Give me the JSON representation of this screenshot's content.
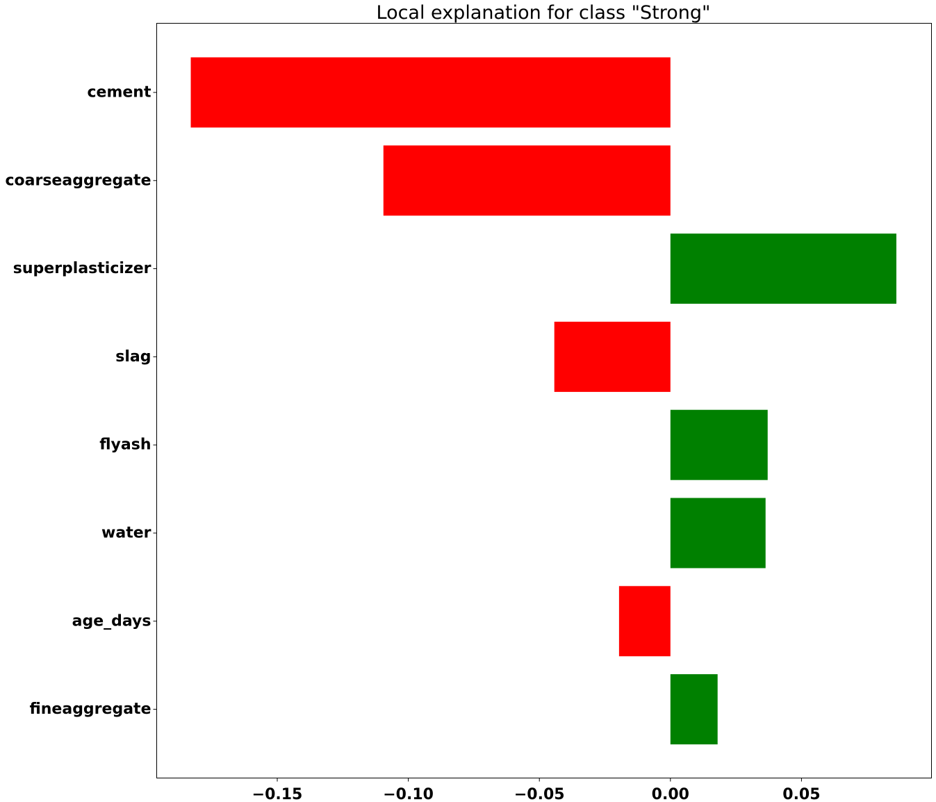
{
  "chart_data": {
    "type": "bar",
    "orientation": "horizontal",
    "title": "Local explanation for class \"Strong\"",
    "xlabel": "",
    "ylabel": "",
    "categories": [
      "cement",
      "coarseaggregate",
      "superplasticizer",
      "slag",
      "flyash",
      "water",
      "age_days",
      "fineaggregate"
    ],
    "values": [
      -0.183,
      -0.1095,
      0.0862,
      -0.0443,
      0.0371,
      0.0363,
      -0.0196,
      0.018
    ],
    "xlim": [
      -0.196,
      0.0996
    ],
    "xticks": [
      -0.15,
      -0.1,
      -0.05,
      0.0,
      0.05
    ],
    "xtick_labels": [
      "−0.15",
      "−0.10",
      "−0.05",
      "0.00",
      "0.05"
    ],
    "colors": {
      "positive": "#008000",
      "negative": "#ff0000"
    },
    "grid": false,
    "legend": "none"
  }
}
